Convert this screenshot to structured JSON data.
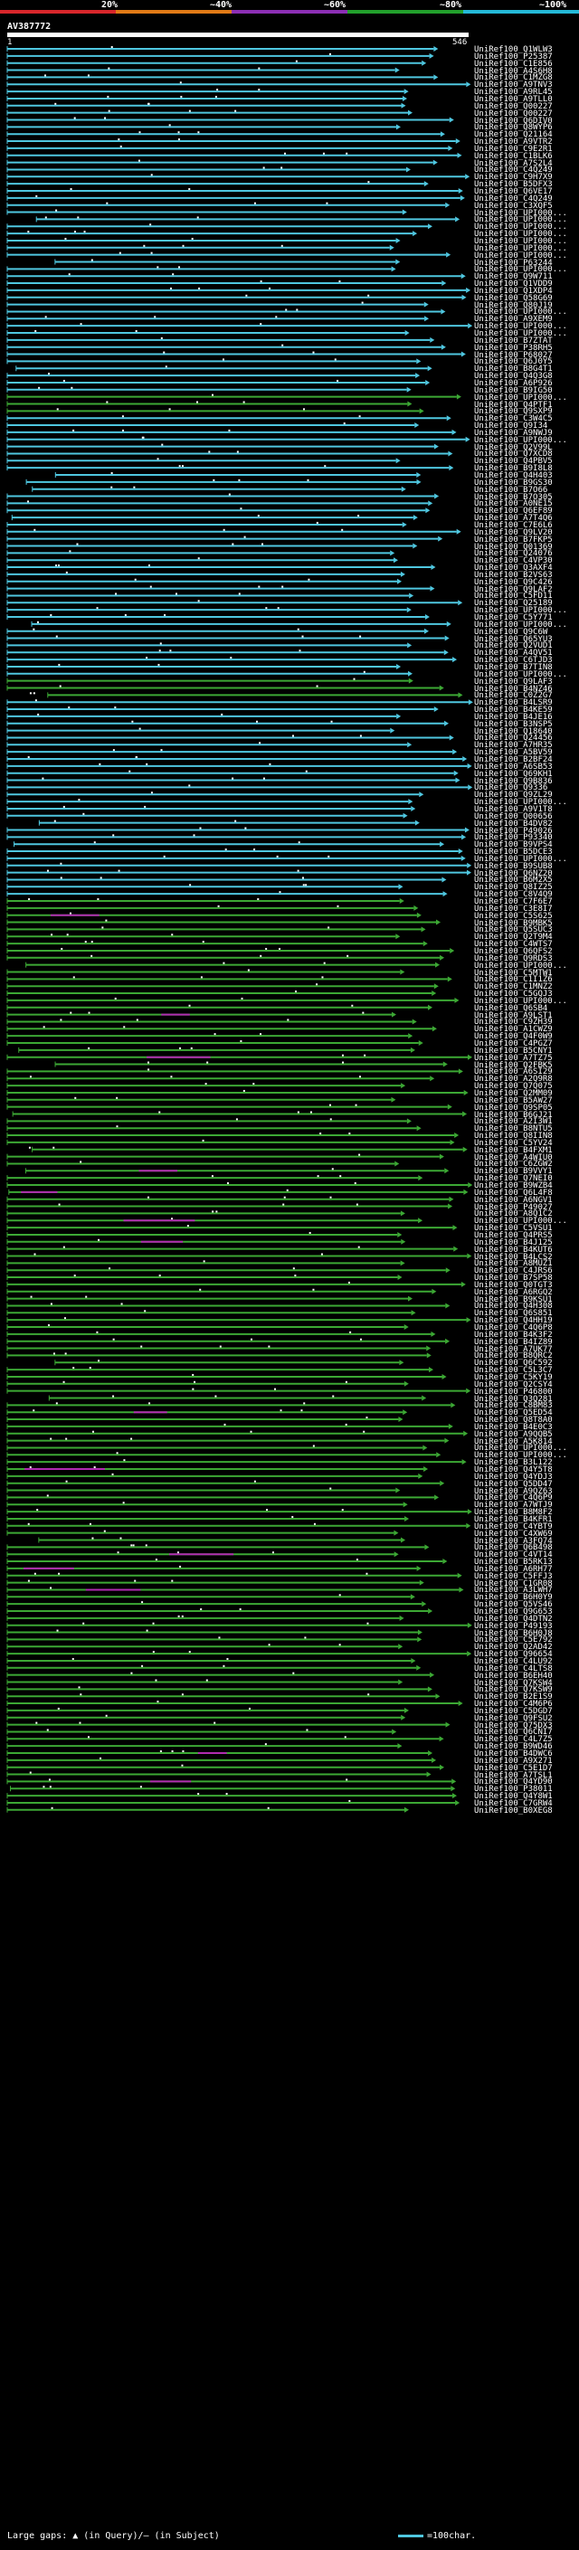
{
  "scale": {
    "labels": [
      "20%",
      "~40%",
      "~60%",
      "~80%",
      "~100%"
    ],
    "colors": [
      "#d8262b",
      "#e07a16",
      "#8c2fb4",
      "#22a02c",
      "#25b9d8"
    ]
  },
  "query": {
    "title": "AV387772",
    "start": "1",
    "end": "546"
  },
  "colors": {
    "cyan": "#4fc7e0",
    "green": "#3ca834",
    "magenta": "#b02cb0",
    "white": "#ffffff"
  },
  "hits": [
    "UniRef100_Q1WLW3",
    "UniRef100_P25387",
    "UniRef100_C1E856",
    "UniRef100_A4S6H8",
    "UniRef100_C1MZG8",
    "UniRef100_A9TNV3",
    "UniRef100_A9RL45",
    "UniRef100_A9TLL0",
    "UniRef100_Q00227",
    "UniRef100_Q00227",
    "UniRef100_Q6DIV0",
    "UniRef100_Q8WYP6",
    "UniRef100_Q21164",
    "UniRef100_A9VTR2",
    "UniRef100_C9E2R1",
    "UniRef100_C1BLK6",
    "UniRef100_A7S2L4",
    "UniRef100_C4Q249",
    "UniRef100_C9H7X9",
    "UniRef100_B5DFX3",
    "UniRef100_Q6VE17",
    "UniRef100_C4Q249",
    "UniRef100_C3XQF5",
    "UniRef100_UPI000...",
    "UniRef100_UPI000...",
    "UniRef100_UPI000...",
    "UniRef100_UPI000...",
    "UniRef100_UPI000...",
    "UniRef100_UPI000...",
    "UniRef100_UPI000...",
    "UniRef100_P63244",
    "UniRef100_UPI000...",
    "UniRef100_Q9W711",
    "UniRef100_Q1VDD9",
    "UniRef100_Q1XDP4",
    "UniRef100_Q58G69",
    "UniRef100_Q80J19",
    "UniRef100_UPI000...",
    "UniRef100_A9XEM9",
    "UniRef100_UPI000...",
    "UniRef100_UPI000...",
    "UniRef100_B7ZTAT",
    "UniRef100_P38RH5",
    "UniRef100_P68027",
    "UniRef100_Q6J0Y5",
    "UniRef100_B8G4T1",
    "UniRef100_Q4Q3G8",
    "UniRef100_A6P926",
    "UniRef100_B9IG50",
    "UniRef100_UPI000...",
    "UniRef100_Q4PTF1",
    "UniRef100_Q9SXP9",
    "UniRef100_C3W4C5",
    "UniRef100_Q9I34",
    "UniRef100_A9NWJ9",
    "UniRef100_UPI000...",
    "UniRef100_Q2V99L",
    "UniRef100_Q7XCD8",
    "UniRef100_Q4PBV5",
    "UniRef100_B9I8L8",
    "UniRef100_Q4H403",
    "UniRef100_B9GS30",
    "UniRef100_B7O66",
    "UniRef100_B7O305",
    "UniRef100_A0NE15",
    "UniRef100_Q6EF89",
    "UniRef100_A7T4Q6",
    "UniRef100_C7E6L6",
    "UniRef100_Q9LV20",
    "UniRef100_B7FKP5",
    "UniRef100_Q01369",
    "UniRef100_Q24076",
    "UniRef100_C4VP30",
    "UniRef100_Q3AXF4",
    "UniRef100_B2VS63",
    "UniRef100_Q9C426",
    "UniRef100_Q9LAF2",
    "UniRef100_C5FD11",
    "UniRef100_Q25189",
    "UniRef100_UPI000...",
    "UniRef100_C5Y771",
    "UniRef100_UPI000...",
    "UniRef100_Q9C6W",
    "UniRef100_Q65YU3",
    "UniRef100_Q2VUD1",
    "UniRef100_A4QV51",
    "UniRef100_C6TJD3",
    "UniRef100_B7TIN8",
    "UniRef100_UPI000...",
    "UniRef100_Q9LAF3",
    "UniRef100_B4NZ46",
    "UniRef100_C0Z2G7",
    "UniRef100_B4LSR9",
    "UniRef100_B4KE59",
    "UniRef100_B4JE16",
    "UniRef100_B3NSP5",
    "UniRef100_Q18640",
    "UniRef100_Q24456",
    "UniRef100_A7HR35",
    "UniRef100_A5BV59",
    "UniRef100_B2BF24",
    "UniRef100_A6SB53",
    "UniRef100_Q69KH1",
    "UniRef100_Q9B836",
    "UniRef100_Q9336",
    "UniRef100_Q9ZL29",
    "UniRef100_UPI000...",
    "UniRef100_A9V1T8",
    "UniRef100_Q00656",
    "UniRef100_B4DV82",
    "UniRef100_P49026",
    "UniRef100_P93340",
    "UniRef100_B9VPS4",
    "UniRef100_B5DCE3",
    "UniRef100_UPI000...",
    "UniRef100_B9SUB8",
    "UniRef100_Q6NZ20",
    "UniRef100_B6M2X5",
    "UniRef100_Q8IZ25",
    "UniRef100_C8V4Q9",
    "UniRef100_C7F6E7",
    "UniRef100_C3E8I7",
    "UniRef100_C5S625",
    "UniRef100_B9MBK5",
    "UniRef100_Q5SUC3",
    "UniRef100_Q2T9M4",
    "UniRef100_C4WTS7",
    "UniRef100_Q6QFS2",
    "UniRef100_Q9RDS3",
    "UniRef100_UPI000...",
    "UniRef100_C5MTW1",
    "UniRef100_C1I1Z6",
    "UniRef100_C1MNZ2",
    "UniRef100_C5GQJ3",
    "UniRef100_UPI000...",
    "UniRef100_Q6SB4",
    "UniRef100_A9LST1",
    "UniRef100_C9ZH39",
    "UniRef100_A1CWZ9",
    "UniRef100_Q4F0W9",
    "UniRef100_C4PGZ7",
    "UniRef100_B5CNY1",
    "UniRef100_A7TZ75",
    "UniRef100_Q2FBK5",
    "UniRef100_A6SI29",
    "UniRef100_A2Q9R8",
    "UniRef100_Q7Q075",
    "UniRef100_Q2MM09",
    "UniRef100_B5AW27",
    "UniRef100_Q9SP05",
    "UniRef100_B6GJ21",
    "UniRef100_A2I3W1",
    "UniRef100_B8NTU5",
    "UniRef100_Q8IIN8",
    "UniRef100_C5YV24",
    "UniRef100_B4FXM1",
    "UniRef100_A4WIU0",
    "UniRef100_C6ZGW2",
    "UniRef100_B9VVY1",
    "UniRef100_Q7NEI0",
    "UniRef100_B9WZB4",
    "UniRef100_Q6L4F8",
    "UniRef100_A6NGV1",
    "UniRef100_P49027",
    "UniRef100_A8Q1C2",
    "UniRef100_UPI000...",
    "UniRef100_C5VSU1",
    "UniRef100_Q4PRS5",
    "UniRef100_B4J125",
    "UniRef100_B4KUT6",
    "UniRef100_B4LCS2",
    "UniRef100_A8MUZ1",
    "UniRef100_C4JRS6",
    "UniRef100_B7SP58",
    "UniRef100_Q0TGT3",
    "UniRef100_A6RGQ2",
    "UniRef100_B9KSU1",
    "UniRef100_Q4H308",
    "UniRef100_Q6S851",
    "UniRef100_Q4HH19",
    "UniRef100_C4Q6P8",
    "UniRef100_B4K3F2",
    "UniRef100_B4IZ89",
    "UniRef100_A7UK77",
    "UniRef100_B8QRC2",
    "UniRef100_Q6C592",
    "UniRef100_C5L3C7",
    "UniRef100_C5KY19",
    "UniRef100_Q2CSY4",
    "UniRef100_P46800",
    "UniRef100_Q3Q281",
    "UniRef100_C8BM83",
    "UniRef100_Q5ED54",
    "UniRef100_Q8T8A0",
    "UniRef100_B4E0C3",
    "UniRef100_A9QQB5",
    "UniRef100_A5K814",
    "UniRef100_UPI000...",
    "UniRef100_UPI000...",
    "UniRef100_B3L122",
    "UniRef100_Q4Y5T8",
    "UniRef100_Q4YDJ3",
    "UniRef100_Q5DD47",
    "UniRef100_A9QZ63",
    "UniRef100_C4Q6P9",
    "UniRef100_A7WTJ9",
    "UniRef100_B8M8F2",
    "UniRef100_B4KFR1",
    "UniRef100_C4YBT9",
    "UniRef100_C4XW69",
    "UniRef100_A3FQ74",
    "UniRef100_Q6B498",
    "UniRef100_C4VT14",
    "UniRef100_B5RK13",
    "UniRef100_A6RH77",
    "UniRef100_C5FFJ3",
    "UniRef100_C1GR08",
    "UniRef100_A3LWH7",
    "UniRef100_B6H0Y9",
    "UniRef100_Q5VS46",
    "UniRef100_Q9G653",
    "UniRef100_Q4DTN2",
    "UniRef100_P49193",
    "UniRef100_B6H0J8",
    "UniRef100_C5E792",
    "UniRef100_Q2AD42",
    "UniRef100_Q96654",
    "UniRef100_C4LU92",
    "UniRef100_C4LTS8",
    "UniRef100_B6EH40",
    "UniRef100_Q7KSW4",
    "UniRef100_Q7KSW9",
    "UniRef100_B2E1S9",
    "UniRef100_C4M6P6",
    "UniRef100_C5DGD7",
    "UniRef100_Q9FSU2",
    "UniRef100_Q75DX3",
    "UniRef100_Q6CNI7",
    "UniRef100_C4L7Z5",
    "UniRef100_B9WD46",
    "UniRef100_B4DWC6",
    "UniRef100_A9X271",
    "UniRef100_C5E1D7",
    "UniRef100_A7TSL1",
    "UniRef100_Q4YD90",
    "UniRef100_P38011",
    "UniRef100_Q4Y8W1",
    "UniRef100_C7GRW4",
    "UniRef100_B0XEG8"
  ],
  "legend": {
    "text": "Large gaps: ▲ (in Query)/— (in Subject)",
    "right": "=100char."
  }
}
